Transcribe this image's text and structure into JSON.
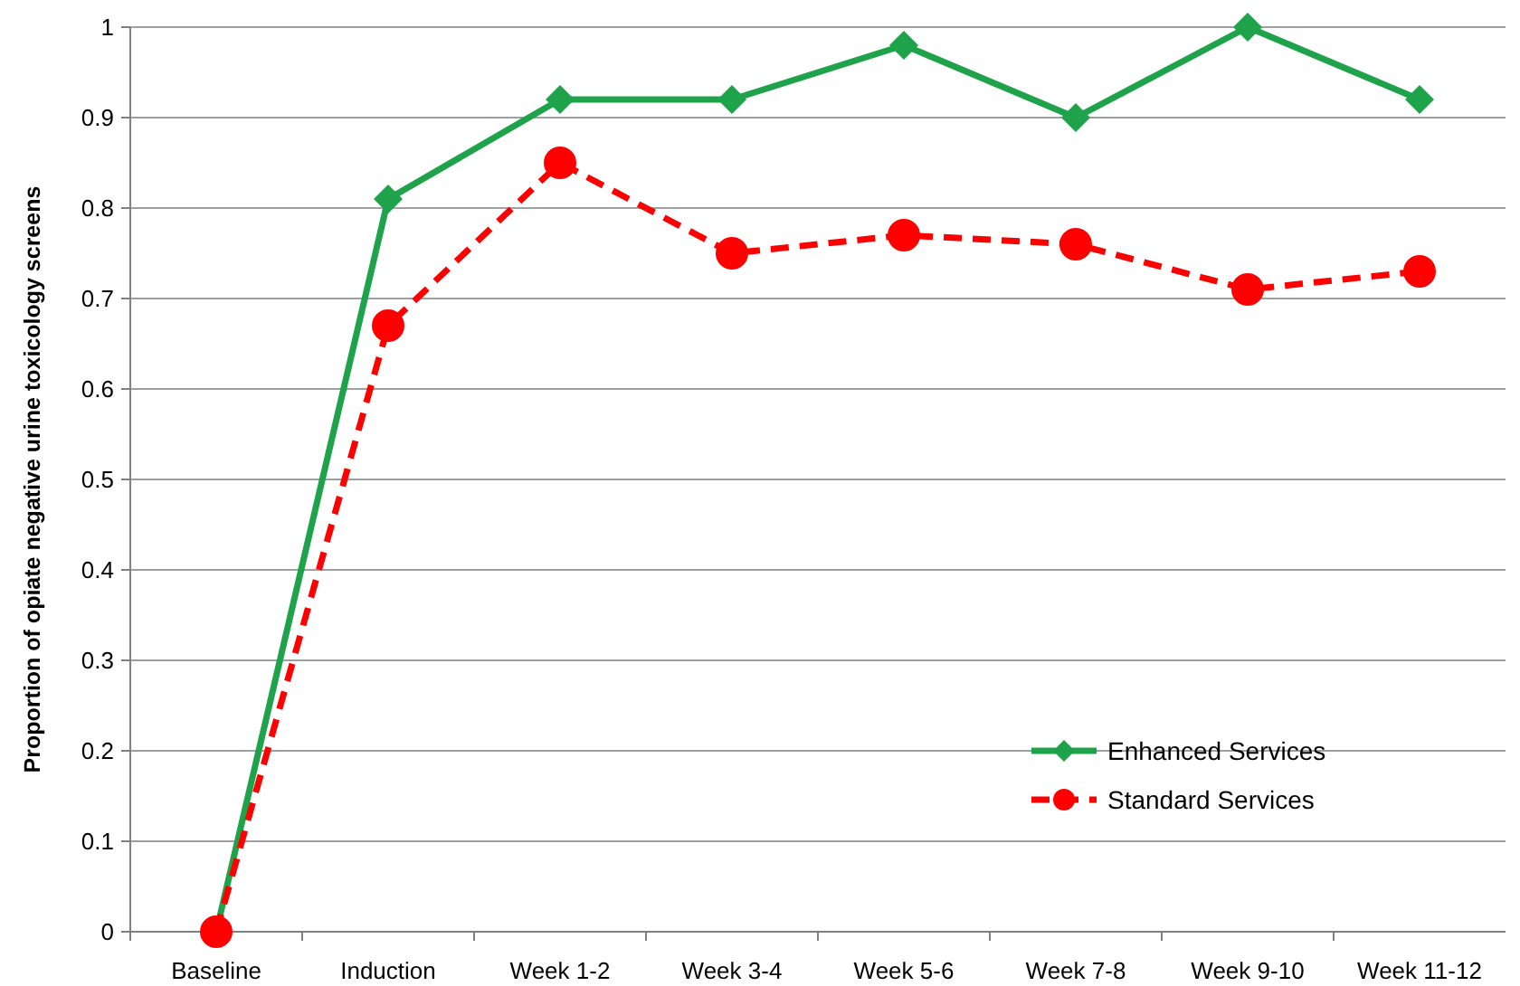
{
  "chart_data": {
    "type": "line",
    "ylabel": "Proportion of opiate negative urine toxicology screens",
    "categories": [
      "Baseline",
      "Induction",
      "Week 1-2",
      "Week 3-4",
      "Week 5-6",
      "Week 7-8",
      "Week 9-10",
      "Week 11-12"
    ],
    "series": [
      {
        "name": "Enhanced Services",
        "color": "#1fa34a",
        "marker": "diamond",
        "line_style": "solid",
        "values": [
          0,
          0.81,
          0.92,
          0.92,
          0.98,
          0.9,
          1.0,
          0.92
        ]
      },
      {
        "name": "Standard Services",
        "color": "#ff0000",
        "marker": "circle",
        "line_style": "dashed",
        "values": [
          0,
          0.67,
          0.85,
          0.75,
          0.77,
          0.76,
          0.71,
          0.73
        ]
      }
    ],
    "ylim": [
      0,
      1
    ],
    "yticks": [
      0,
      0.1,
      0.2,
      0.3,
      0.4,
      0.5,
      0.6,
      0.7,
      0.8,
      0.9,
      1
    ],
    "grid": "y",
    "legend": "bottom right"
  }
}
